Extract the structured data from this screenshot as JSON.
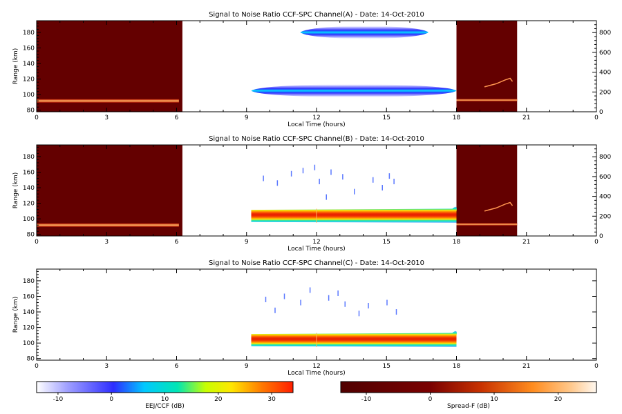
{
  "chart_data": [
    {
      "type": "heatmap",
      "title": "Signal to Noise Ratio CCF-SPC Channel(A) - Date: 14-Oct-2010",
      "xlabel": "Local Time (hours)",
      "ylabel": "Range (km)",
      "xlim": [
        0,
        24
      ],
      "ylim": [
        78,
        195
      ],
      "xticks": [
        "0",
        "3",
        "6",
        "9",
        "12",
        "15",
        "18",
        "21",
        "0"
      ],
      "yticks": [
        80,
        100,
        120,
        140,
        160,
        180
      ],
      "y2lim": [
        0,
        920
      ],
      "y2ticks": [
        0,
        200,
        400,
        600,
        800
      ],
      "spread_f_blocks": [
        {
          "x0": 0,
          "x1": 6.25,
          "y0": 78,
          "y1": 195
        },
        {
          "x0": 18.0,
          "x1": 20.6,
          "y0": 78,
          "y1": 195
        }
      ],
      "spread_f_layers": [
        {
          "x0": 0,
          "x1": 6.1,
          "y": 92,
          "thickness": 2.2
        },
        {
          "x0": 18.0,
          "x1": 20.6,
          "y": 93,
          "thickness": 1.5
        }
      ],
      "spread_f_trails": [
        {
          "points": [
            [
              19.2,
              110
            ],
            [
              19.7,
              114
            ],
            [
              20.1,
              119
            ],
            [
              20.3,
              121
            ],
            [
              20.4,
              117
            ]
          ]
        }
      ],
      "eej_bands": [
        {
          "x0": 9.2,
          "x1": 18.0,
          "ymid": 105,
          "halfwidth": 7,
          "peak_db": 3
        },
        {
          "x0": 11.3,
          "x1": 16.8,
          "ymid": 180,
          "halfwidth": 7,
          "peak_db": 3
        }
      ],
      "eej_specks": []
    },
    {
      "type": "heatmap",
      "title": "Signal to Noise Ratio CCF-SPC Channel(B) - Date: 14-Oct-2010",
      "xlabel": "Local Time (hours)",
      "ylabel": "Range (km)",
      "xlim": [
        0,
        24
      ],
      "ylim": [
        78,
        195
      ],
      "xticks": [
        "0",
        "3",
        "6",
        "9",
        "12",
        "15",
        "18",
        "21",
        "0"
      ],
      "yticks": [
        80,
        100,
        120,
        140,
        160,
        180
      ],
      "y2lim": [
        0,
        920
      ],
      "y2ticks": [
        0,
        200,
        400,
        600,
        800
      ],
      "spread_f_blocks": [
        {
          "x0": 0,
          "x1": 6.25,
          "y0": 78,
          "y1": 195
        },
        {
          "x0": 18.0,
          "x1": 20.6,
          "y0": 78,
          "y1": 195
        }
      ],
      "spread_f_layers": [
        {
          "x0": 0,
          "x1": 6.1,
          "y": 92,
          "thickness": 2.2
        },
        {
          "x0": 18.0,
          "x1": 20.6,
          "y": 93,
          "thickness": 1.5
        }
      ],
      "spread_f_trails": [
        {
          "points": [
            [
              19.2,
              110
            ],
            [
              19.7,
              114
            ],
            [
              20.1,
              119
            ],
            [
              20.3,
              121
            ],
            [
              20.4,
              117
            ]
          ]
        }
      ],
      "eej_bands": [
        {
          "x0": 9.2,
          "x1": 18.0,
          "ymid": 104,
          "halfwidth": 9,
          "peak_db": 30
        }
      ],
      "eej_specks": [
        [
          10.9,
          158
        ],
        [
          11.4,
          162
        ],
        [
          12.6,
          160
        ],
        [
          13.1,
          154
        ],
        [
          9.7,
          152
        ],
        [
          12.1,
          148
        ],
        [
          14.4,
          150
        ],
        [
          15.1,
          155
        ],
        [
          10.3,
          146
        ],
        [
          11.9,
          166
        ],
        [
          14.8,
          140
        ],
        [
          13.6,
          135
        ],
        [
          12.4,
          128
        ],
        [
          15.3,
          148
        ]
      ]
    },
    {
      "type": "heatmap",
      "title": "Signal to Noise Ratio CCF-SPC Channel(C) - Date: 14-Oct-2010",
      "xlabel": "Local Time (hours)",
      "ylabel": "Range (km)",
      "xlim": [
        0,
        24
      ],
      "ylim": [
        78,
        195
      ],
      "xticks": [
        "0",
        "3",
        "6",
        "9",
        "12",
        "15",
        "18",
        "21",
        "0"
      ],
      "yticks": [
        80,
        100,
        120,
        140,
        160,
        180
      ],
      "spread_f_blocks": [],
      "spread_f_layers": [],
      "spread_f_trails": [],
      "eej_bands": [
        {
          "x0": 9.2,
          "x1": 18.0,
          "ymid": 104,
          "halfwidth": 9,
          "peak_db": 30
        }
      ],
      "eej_specks": [
        [
          10.6,
          160
        ],
        [
          11.3,
          152
        ],
        [
          12.5,
          158
        ],
        [
          13.2,
          150
        ],
        [
          9.8,
          156
        ],
        [
          14.2,
          148
        ],
        [
          15.0,
          152
        ],
        [
          10.2,
          142
        ],
        [
          12.9,
          164
        ],
        [
          13.8,
          138
        ],
        [
          11.7,
          168
        ],
        [
          15.4,
          140
        ]
      ]
    }
  ],
  "colorbars": [
    {
      "label": "EEJ/CCF (dB)",
      "min": -14,
      "max": 34,
      "ticks": [
        "-10",
        "0",
        "10",
        "20",
        "30"
      ],
      "scheme": "eej"
    },
    {
      "label": "Spread-F (dB)",
      "min": -14,
      "max": 26,
      "ticks": [
        "-10",
        "0",
        "10",
        "20"
      ],
      "scheme": "spreadf"
    }
  ],
  "colors": {
    "spread_f_bg": "#640000",
    "eej_low": "#2d2dff",
    "eej_mid": "#00dcdc",
    "eej_high": "#ff1e00"
  }
}
